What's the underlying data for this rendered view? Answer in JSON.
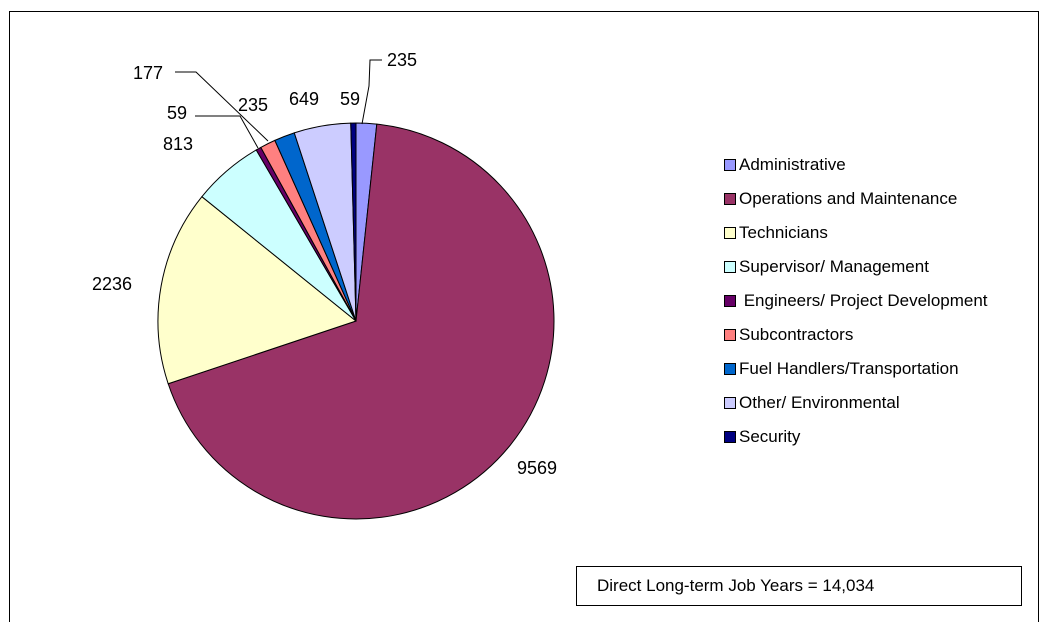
{
  "chart_data": {
    "type": "pie",
    "slices": [
      {
        "label": "Administrative",
        "value": 235,
        "color": "#9999ff"
      },
      {
        "label": "Operations and Maintenance",
        "value": 9569,
        "color": "#993366"
      },
      {
        "label": "Technicians",
        "value": 2236,
        "color": "#ffffcc"
      },
      {
        "label": "Supervisor/ Management",
        "value": 813,
        "color": "#ccffff"
      },
      {
        "label": " Engineers/ Project Development",
        "value": 59,
        "color": "#660066"
      },
      {
        "label": "Subcontractors",
        "value": 177,
        "color": "#ff8080"
      },
      {
        "label": "Fuel Handlers/Transportation",
        "value": 235,
        "color": "#0066cc"
      },
      {
        "label": "Other/ Environmental",
        "value": 649,
        "color": "#ccccff"
      },
      {
        "label": "Security",
        "value": 59,
        "color": "#000080"
      }
    ],
    "legend_position": "right",
    "annotation": "Direct Long-term Job Years = 14,034"
  }
}
